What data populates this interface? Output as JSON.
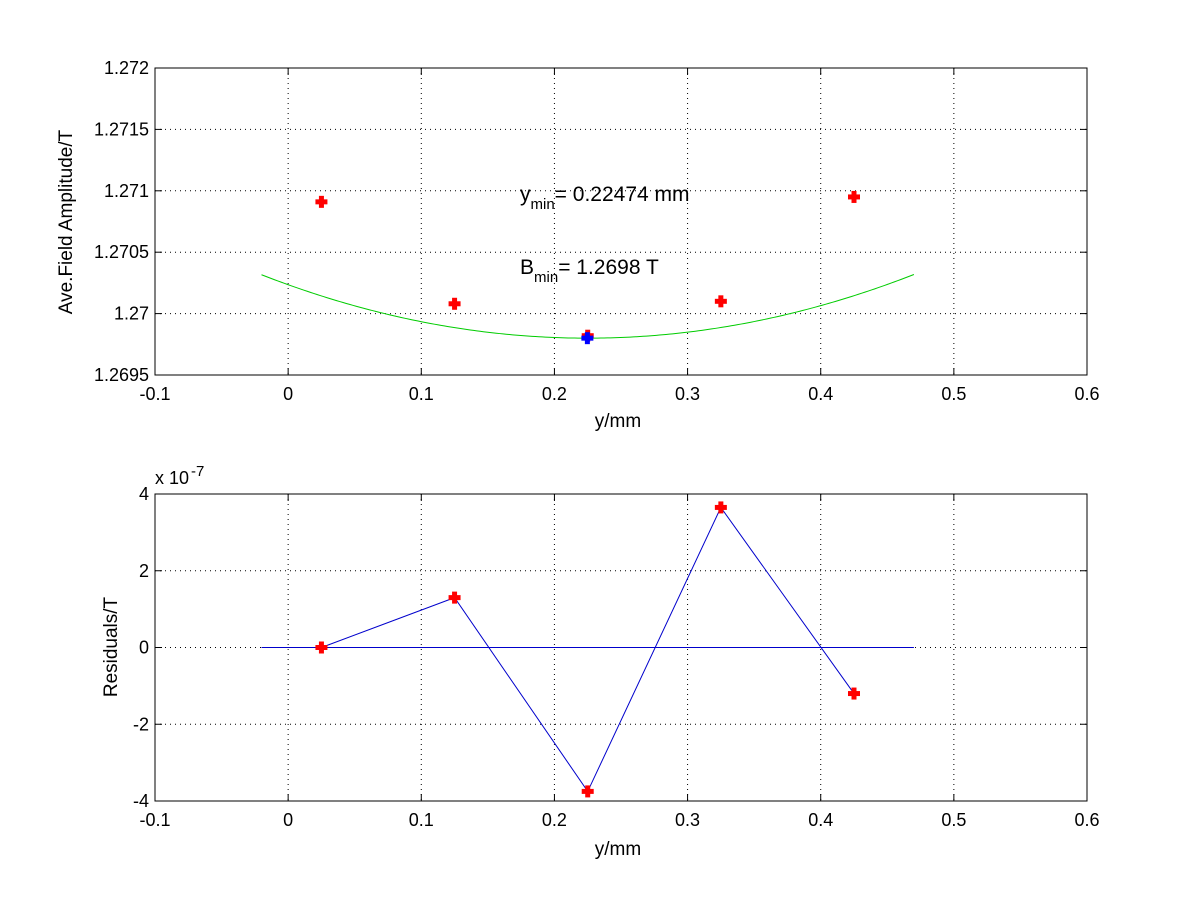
{
  "chart_data": [
    {
      "type": "scatter",
      "xlabel": "y/mm",
      "ylabel": "Ave.Field Amplitude/T",
      "xlim": [
        -0.1,
        0.6
      ],
      "ylim": [
        1.2695,
        1.272
      ],
      "xticks": [
        "-0.1",
        "0",
        "0.1",
        "0.2",
        "0.3",
        "0.4",
        "0.5",
        "0.6"
      ],
      "yticks": [
        "1.2695",
        "1.27",
        "1.2705",
        "1.271",
        "1.2715",
        "1.272"
      ],
      "grid": true,
      "series": [
        {
          "kind": "points",
          "color": "#ff0000",
          "x": [
            0.025,
            0.125,
            0.225,
            0.325,
            0.425
          ],
          "y": [
            1.27091,
            1.27008,
            1.26982,
            1.2701,
            1.27095
          ]
        },
        {
          "kind": "fit-curve",
          "color": "#00cc00",
          "x_range": [
            -0.02,
            0.47
          ],
          "vertex": [
            0.22474,
            1.2698
          ],
          "curvature": 0.00862
        },
        {
          "kind": "minimum-point",
          "color": "#0000ff",
          "x": [
            0.22474
          ],
          "y": [
            1.2698
          ]
        }
      ],
      "annotations": {
        "ymin_main": "y",
        "ymin_sub": "min",
        "ymin_value": "= 0.22474 mm",
        "bmin_main": "B",
        "bmin_sub": "min",
        "bmin_value": "= 1.2698 T"
      }
    },
    {
      "type": "line",
      "xlabel": "y/mm",
      "ylabel": "Residuals/T",
      "xlim": [
        -0.1,
        0.6
      ],
      "ylim": [
        -4,
        4
      ],
      "xticks": [
        "-0.1",
        "0",
        "0.1",
        "0.2",
        "0.3",
        "0.4",
        "0.5",
        "0.6"
      ],
      "yticks": [
        "-4",
        "-2",
        "0",
        "2",
        "4"
      ],
      "y_exponent_base": "x 10",
      "y_exponent_power": "-7",
      "grid": true,
      "series": [
        {
          "kind": "residuals",
          "color": "#0000cc",
          "marker_color": "#ff0000",
          "x": [
            0.025,
            0.125,
            0.225,
            0.325,
            0.425
          ],
          "y": [
            0.0,
            1.3,
            -3.75,
            3.65,
            -1.2
          ]
        },
        {
          "kind": "zero-line",
          "color": "#0000cc",
          "x_range": [
            -0.02,
            0.47
          ],
          "y": 0
        }
      ]
    }
  ]
}
